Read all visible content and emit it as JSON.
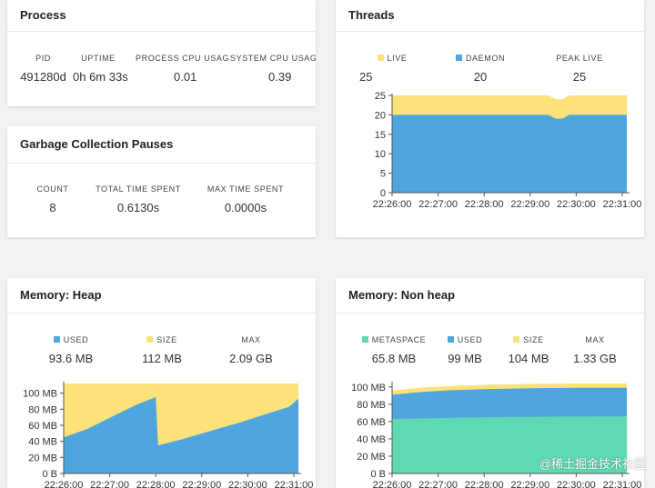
{
  "process": {
    "title": "Process",
    "stats": [
      {
        "label": "PID",
        "value": "491280d"
      },
      {
        "label": "UPTIME",
        "value": "0h 6m 33s"
      },
      {
        "label": "PROCESS CPU USAGE",
        "value": "0.01"
      },
      {
        "label": "SYSTEM CPU USAGE",
        "value": "0.39"
      }
    ]
  },
  "gc": {
    "title": "Garbage Collection Pauses",
    "stats": [
      {
        "label": "COUNT",
        "value": "8"
      },
      {
        "label": "TOTAL TIME SPENT",
        "value": "0.6130s"
      },
      {
        "label": "MAX TIME SPENT",
        "value": "0.0000s"
      }
    ]
  },
  "threads": {
    "title": "Threads",
    "stats": [
      {
        "label": "LIVE",
        "value": "25",
        "color": "#fde17a"
      },
      {
        "label": "DAEMON",
        "value": "20",
        "color": "#4fa5dd"
      },
      {
        "label": "PEAK LIVE",
        "value": "25"
      }
    ]
  },
  "heap": {
    "title": "Memory: Heap",
    "stats": [
      {
        "label": "USED",
        "value": "93.6 MB",
        "color": "#4fa5dd"
      },
      {
        "label": "SIZE",
        "value": "112 MB",
        "color": "#fde17a"
      },
      {
        "label": "MAX",
        "value": "2.09 GB"
      }
    ]
  },
  "nonheap": {
    "title": "Memory: Non heap",
    "stats": [
      {
        "label": "METASPACE",
        "value": "65.8 MB",
        "color": "#5fd9b3"
      },
      {
        "label": "USED",
        "value": "99 MB",
        "color": "#4fa5dd"
      },
      {
        "label": "SIZE",
        "value": "104 MB",
        "color": "#fde17a"
      },
      {
        "label": "MAX",
        "value": "1.33 GB"
      }
    ]
  },
  "watermark": "@稀土掘金技术社区",
  "chart_data": [
    {
      "type": "area",
      "id": "threads",
      "x": [
        "22:26:00",
        "22:27:00",
        "22:28:00",
        "22:29:00",
        "22:30:00",
        "22:31:00"
      ],
      "yticks": [
        "0",
        "5",
        "10",
        "15",
        "20",
        "25"
      ],
      "ylim": [
        0,
        25
      ],
      "series": [
        {
          "name": "DAEMON",
          "color": "#4fa5dd",
          "points": [
            [
              0,
              20
            ],
            [
              3.4,
              20
            ],
            [
              3.55,
              19
            ],
            [
              3.7,
              19
            ],
            [
              3.85,
              20
            ],
            [
              5.1,
              20
            ]
          ]
        },
        {
          "name": "LIVE",
          "color": "#fde17a",
          "points": [
            [
              0,
              25
            ],
            [
              3.4,
              25
            ],
            [
              3.55,
              24
            ],
            [
              3.7,
              24
            ],
            [
              3.85,
              25
            ],
            [
              5.1,
              25
            ]
          ]
        }
      ]
    },
    {
      "type": "area",
      "id": "heap",
      "x": [
        "22:26:00",
        "22:27:00",
        "22:28:00",
        "22:29:00",
        "22:30:00",
        "22:31:00"
      ],
      "yticks": [
        "0 B",
        "20 MB",
        "40 MB",
        "60 MB",
        "80 MB",
        "100 MB"
      ],
      "ylim": [
        0,
        112
      ],
      "series": [
        {
          "name": "USED",
          "color": "#4fa5dd",
          "points": [
            [
              0,
              45
            ],
            [
              0.5,
              55
            ],
            [
              1.2,
              75
            ],
            [
              1.6,
              86
            ],
            [
              2.0,
              95
            ],
            [
              2.05,
              35
            ],
            [
              2.6,
              43
            ],
            [
              3.2,
              53
            ],
            [
              3.8,
              63
            ],
            [
              4.4,
              74
            ],
            [
              4.9,
              83
            ],
            [
              5.1,
              93
            ]
          ]
        },
        {
          "name": "SIZE",
          "color": "#fde17a",
          "points": [
            [
              0,
              112
            ],
            [
              5.1,
              112
            ]
          ]
        }
      ]
    },
    {
      "type": "area",
      "id": "nonheap",
      "x": [
        "22:26:00",
        "22:27:00",
        "22:28:00",
        "22:29:00",
        "22:30:00",
        "22:31:00"
      ],
      "yticks": [
        "0 B",
        "20 MB",
        "40 MB",
        "60 MB",
        "80 MB",
        "100 MB"
      ],
      "ylim": [
        0,
        104
      ],
      "series": [
        {
          "name": "METASPACE",
          "color": "#5fd9b3",
          "points": [
            [
              0,
              63
            ],
            [
              1,
              64
            ],
            [
              2,
              65
            ],
            [
              3,
              65.5
            ],
            [
              4,
              65.8
            ],
            [
              5.1,
              66
            ]
          ]
        },
        {
          "name": "USED",
          "color": "#4fa5dd",
          "points": [
            [
              0,
              91
            ],
            [
              0.6,
              94
            ],
            [
              1.2,
              96
            ],
            [
              2,
              97.5
            ],
            [
              3,
              98.5
            ],
            [
              4,
              99
            ],
            [
              5.1,
              99
            ]
          ]
        },
        {
          "name": "SIZE",
          "color": "#fde17a",
          "points": [
            [
              0,
              96
            ],
            [
              0.6,
              99
            ],
            [
              1.2,
              101
            ],
            [
              2,
              102.5
            ],
            [
              3,
              103.5
            ],
            [
              4,
              104
            ],
            [
              5.1,
              104
            ]
          ]
        }
      ]
    }
  ]
}
